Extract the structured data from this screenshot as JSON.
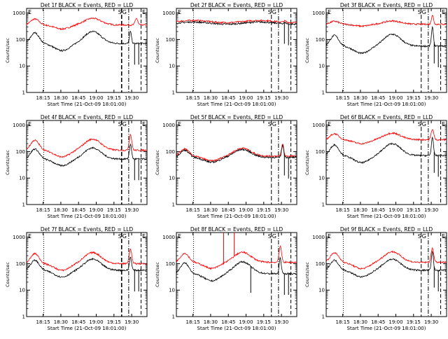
{
  "chart_data": [
    {
      "type": "line",
      "title": "Det 1f BLACK = Events, RED = LLD",
      "markers": [
        "E",
        "S",
        "G",
        "E"
      ],
      "panel": 0
    },
    {
      "type": "line",
      "title": "Det 2f BLACK = Events, RED = LLD",
      "markers": [
        "E",
        "S",
        "G",
        "E"
      ],
      "panel": 1
    },
    {
      "type": "line",
      "title": "Det 3f BLACK = Events, RED = LLD",
      "markers": [
        "E",
        "S",
        "G",
        "E"
      ],
      "panel": 2
    },
    {
      "type": "line",
      "title": "Det 4f BLACK = Events, RED = LLD",
      "markers": [
        "E",
        "S",
        "G",
        "E"
      ],
      "panel": 3
    },
    {
      "type": "line",
      "title": "Det 5f BLACK = Events, RED = LLD",
      "markers": [
        "E",
        "S",
        "G",
        "E"
      ],
      "panel": 4
    },
    {
      "type": "line",
      "title": "Det 6f BLACK = Events, RED = LLD",
      "markers": [
        "E",
        "S",
        "G",
        "E"
      ],
      "panel": 5
    },
    {
      "type": "line",
      "title": "Det 7f BLACK = Events, RED = LLD",
      "markers": [
        "E",
        "S",
        "G",
        "E"
      ],
      "panel": 6
    },
    {
      "type": "line",
      "title": "Det 8f BLACK = Events, RED = LLD",
      "markers": [
        "E",
        "S",
        "G",
        "E"
      ],
      "panel": 7
    },
    {
      "type": "line",
      "title": "Det 9f BLACK = Events, RED = LLD",
      "markers": [
        "E",
        "S",
        "G",
        "E"
      ],
      "panel": 8
    }
  ],
  "shared": {
    "ylabel": "Counts/sec",
    "xlabel": "Start Time (21-Oct-09 18:01:00)",
    "x_ticks": [
      "18:15",
      "18:30",
      "18:45",
      "19:00",
      "19:15",
      "19:30"
    ],
    "x_tick_minutes": [
      14,
      29,
      44,
      59,
      74,
      89
    ],
    "x_range_minutes": [
      0,
      102
    ],
    "y_ticks": [
      "1",
      "10",
      "100",
      "1000"
    ],
    "y_tick_values": [
      1,
      10,
      100,
      1000
    ],
    "y_range": [
      1,
      1500
    ],
    "y_scale": "log",
    "series_colors": {
      "events": "#000000",
      "lld": "#ff0000"
    },
    "vlines_minutes": {
      "dotted": 14.5,
      "dashed_s": 80.5,
      "dashed_g": 86.5,
      "dashed_e": 97
    }
  }
}
